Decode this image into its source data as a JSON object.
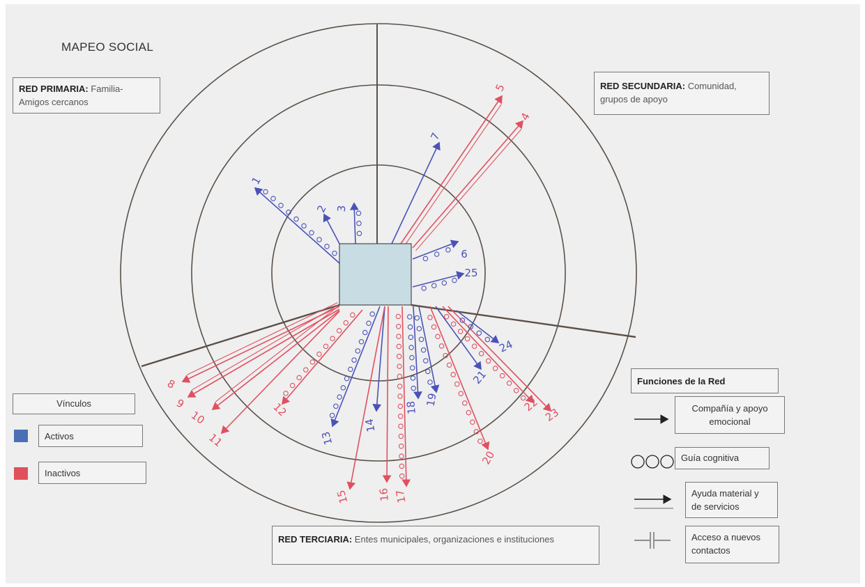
{
  "title": "MAPEO SOCIAL",
  "sectors": {
    "primary": {
      "heading": "RED PRIMARIA:",
      "text": "Familia-",
      "text2": "Amigos cercanos"
    },
    "secondary": {
      "heading": "RED SECUNDARIA:",
      "text": "Comunidad,",
      "text2": "grupos de apoyo"
    },
    "tertiary": {
      "heading": "RED TERCIARIA:",
      "text": "Entes municipales, organizaciones e instituciones"
    }
  },
  "legend_vinculos": {
    "heading": "Vínculos",
    "items": [
      {
        "label": "Activos",
        "color": "#4a6fb5"
      },
      {
        "label": "Inactivos",
        "color": "#e0505a"
      }
    ]
  },
  "legend_funciones": {
    "heading": "Funciones de la Red",
    "items": [
      {
        "label": "Compañía y apoyo",
        "label2": "emocional",
        "icon": "solid-arrow-icon"
      },
      {
        "label": "Guía cognitiva",
        "icon": "circles-icon"
      },
      {
        "label": "Ayuda material y",
        "label2": "de servicios",
        "icon": "double-arrow-icon"
      },
      {
        "label": "Acceso a nuevos",
        "label2": "contactos",
        "icon": "barrier-line-icon"
      }
    ]
  },
  "colors": {
    "active": "#4a52b8",
    "inactive": "#e05060",
    "lines": "#5a5048"
  },
  "links": [
    {
      "id": "1",
      "status": "active",
      "type": "guidance"
    },
    {
      "id": "2",
      "status": "active",
      "type": "support"
    },
    {
      "id": "3",
      "status": "active",
      "type": "guidance"
    },
    {
      "id": "4",
      "status": "inactive",
      "type": "material"
    },
    {
      "id": "5",
      "status": "inactive",
      "type": "material"
    },
    {
      "id": "6",
      "status": "active",
      "type": "guidance"
    },
    {
      "id": "7",
      "status": "active",
      "type": "support"
    },
    {
      "id": "8",
      "status": "inactive",
      "type": "material"
    },
    {
      "id": "9",
      "status": "inactive",
      "type": "material"
    },
    {
      "id": "10",
      "status": "inactive",
      "type": "material"
    },
    {
      "id": "11",
      "status": "inactive",
      "type": "support"
    },
    {
      "id": "12",
      "status": "inactive",
      "type": "guidance"
    },
    {
      "id": "13",
      "status": "active",
      "type": "guidance"
    },
    {
      "id": "14",
      "status": "active",
      "type": "support"
    },
    {
      "id": "15",
      "status": "inactive",
      "type": "support"
    },
    {
      "id": "16",
      "status": "inactive",
      "type": "support"
    },
    {
      "id": "17",
      "status": "inactive",
      "type": "guidance"
    },
    {
      "id": "18",
      "status": "active",
      "type": "guidance"
    },
    {
      "id": "19",
      "status": "active",
      "type": "guidance"
    },
    {
      "id": "20",
      "status": "inactive",
      "type": "guidance"
    },
    {
      "id": "21",
      "status": "active",
      "type": "support"
    },
    {
      "id": "22",
      "status": "inactive",
      "type": "guidance"
    },
    {
      "id": "23",
      "status": "inactive",
      "type": "support"
    },
    {
      "id": "24",
      "status": "active",
      "type": "guidance"
    },
    {
      "id": "25",
      "status": "active",
      "type": "guidance"
    }
  ]
}
